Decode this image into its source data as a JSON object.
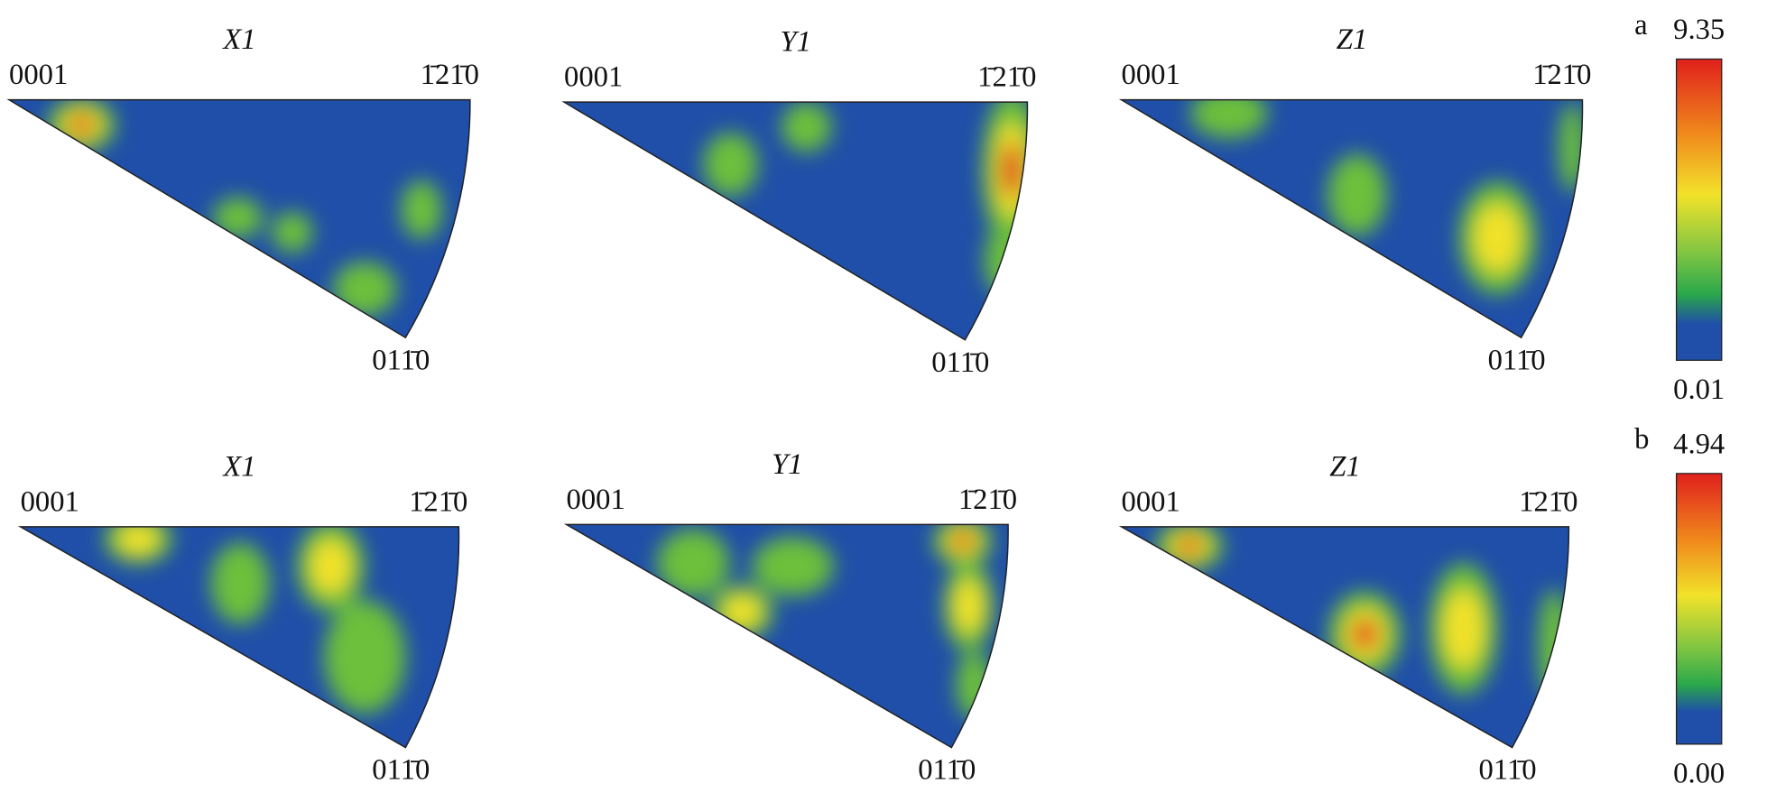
{
  "panels": [
    {
      "label": "a",
      "colorbar": {
        "max": "9.35",
        "min": "0.01"
      },
      "plots": [
        {
          "title": "X1",
          "corners": {
            "origin": "0001",
            "top_right": "1̄21̄0",
            "bottom": "011̄0"
          }
        },
        {
          "title": "Y1",
          "corners": {
            "origin": "0001",
            "top_right": "1̄21̄0",
            "bottom": "011̄0"
          }
        },
        {
          "title": "Z1",
          "corners": {
            "origin": "0001",
            "top_right": "1̄21̄0",
            "bottom": "011̄0"
          }
        }
      ]
    },
    {
      "label": "b",
      "colorbar": {
        "max": "4.94",
        "min": "0.00"
      },
      "plots": [
        {
          "title": "X1",
          "corners": {
            "origin": "0001",
            "top_right": "1̄21̄0",
            "bottom": "011̄0"
          }
        },
        {
          "title": "Y1",
          "corners": {
            "origin": "0001",
            "top_right": "1̄21̄0",
            "bottom": "011̄0"
          }
        },
        {
          "title": "Z1",
          "corners": {
            "origin": "0001",
            "top_right": "1̄21̄0",
            "bottom": "011̄0"
          }
        }
      ]
    }
  ]
}
